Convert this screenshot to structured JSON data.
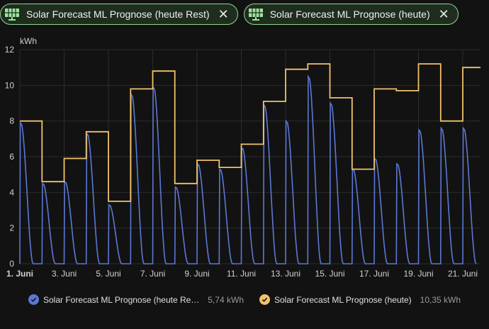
{
  "chips": [
    {
      "label": "Solar Forecast ML Prognose (heute Rest)",
      "icon": "solar-panel-icon",
      "close_icon": "close-icon"
    },
    {
      "label": "Solar Forecast ML Prognose (heute)",
      "icon": "solar-panel-icon",
      "close_icon": "close-icon"
    }
  ],
  "colors": {
    "blue": "#5b78d6",
    "orange": "#f3c26b",
    "grid": "#2c2c2c",
    "chip_border": "#8fd88f"
  },
  "legend": [
    {
      "name": "Solar Forecast ML Prognose (heute Re…",
      "value": "5,74 kWh",
      "color": "#5b78d6"
    },
    {
      "name": "Solar Forecast ML Prognose (heute)",
      "value": "10,35 kWh",
      "color": "#f3c26b"
    }
  ],
  "chart_data": {
    "type": "line",
    "ylabel": "kWh",
    "ylim": [
      0,
      12
    ],
    "yticks": [
      0,
      2,
      4,
      6,
      8,
      10,
      12
    ],
    "xlim": [
      1,
      21.8
    ],
    "xticks": [
      {
        "day": 1,
        "label": "1. Juni",
        "bold": true
      },
      {
        "day": 3,
        "label": "3. Juni"
      },
      {
        "day": 5,
        "label": "5. Juni"
      },
      {
        "day": 7,
        "label": "7. Juni"
      },
      {
        "day": 9,
        "label": "9. Juni"
      },
      {
        "day": 11,
        "label": "11. Juni"
      },
      {
        "day": 13,
        "label": "13. Juni"
      },
      {
        "day": 15,
        "label": "15. Juni"
      },
      {
        "day": 17,
        "label": "17. Juni"
      },
      {
        "day": 19,
        "label": "19. Juni"
      },
      {
        "day": 21,
        "label": "21. Juni"
      }
    ],
    "series": [
      {
        "name": "Solar Forecast ML Prognose (heute)",
        "kind": "daily-step",
        "values": [
          8.0,
          4.6,
          5.9,
          7.4,
          3.5,
          9.8,
          10.8,
          4.5,
          5.8,
          5.4,
          6.7,
          9.1,
          10.9,
          11.2,
          9.3,
          5.3,
          9.8,
          9.7,
          11.2,
          8.0,
          11.0,
          10.4
        ]
      },
      {
        "name": "Solar Forecast ML Prognose (heute Rest)",
        "kind": "intraday-decay",
        "peaks": [
          7.9,
          4.5,
          4.6,
          7.3,
          3.3,
          9.5,
          9.9,
          4.3,
          5.6,
          5.3,
          6.5,
          8.9,
          8.0,
          10.5,
          9.0,
          5.3,
          5.9,
          5.6,
          7.5,
          7.6,
          7.6,
          7.5
        ],
        "last_value": 5.74
      }
    ]
  }
}
